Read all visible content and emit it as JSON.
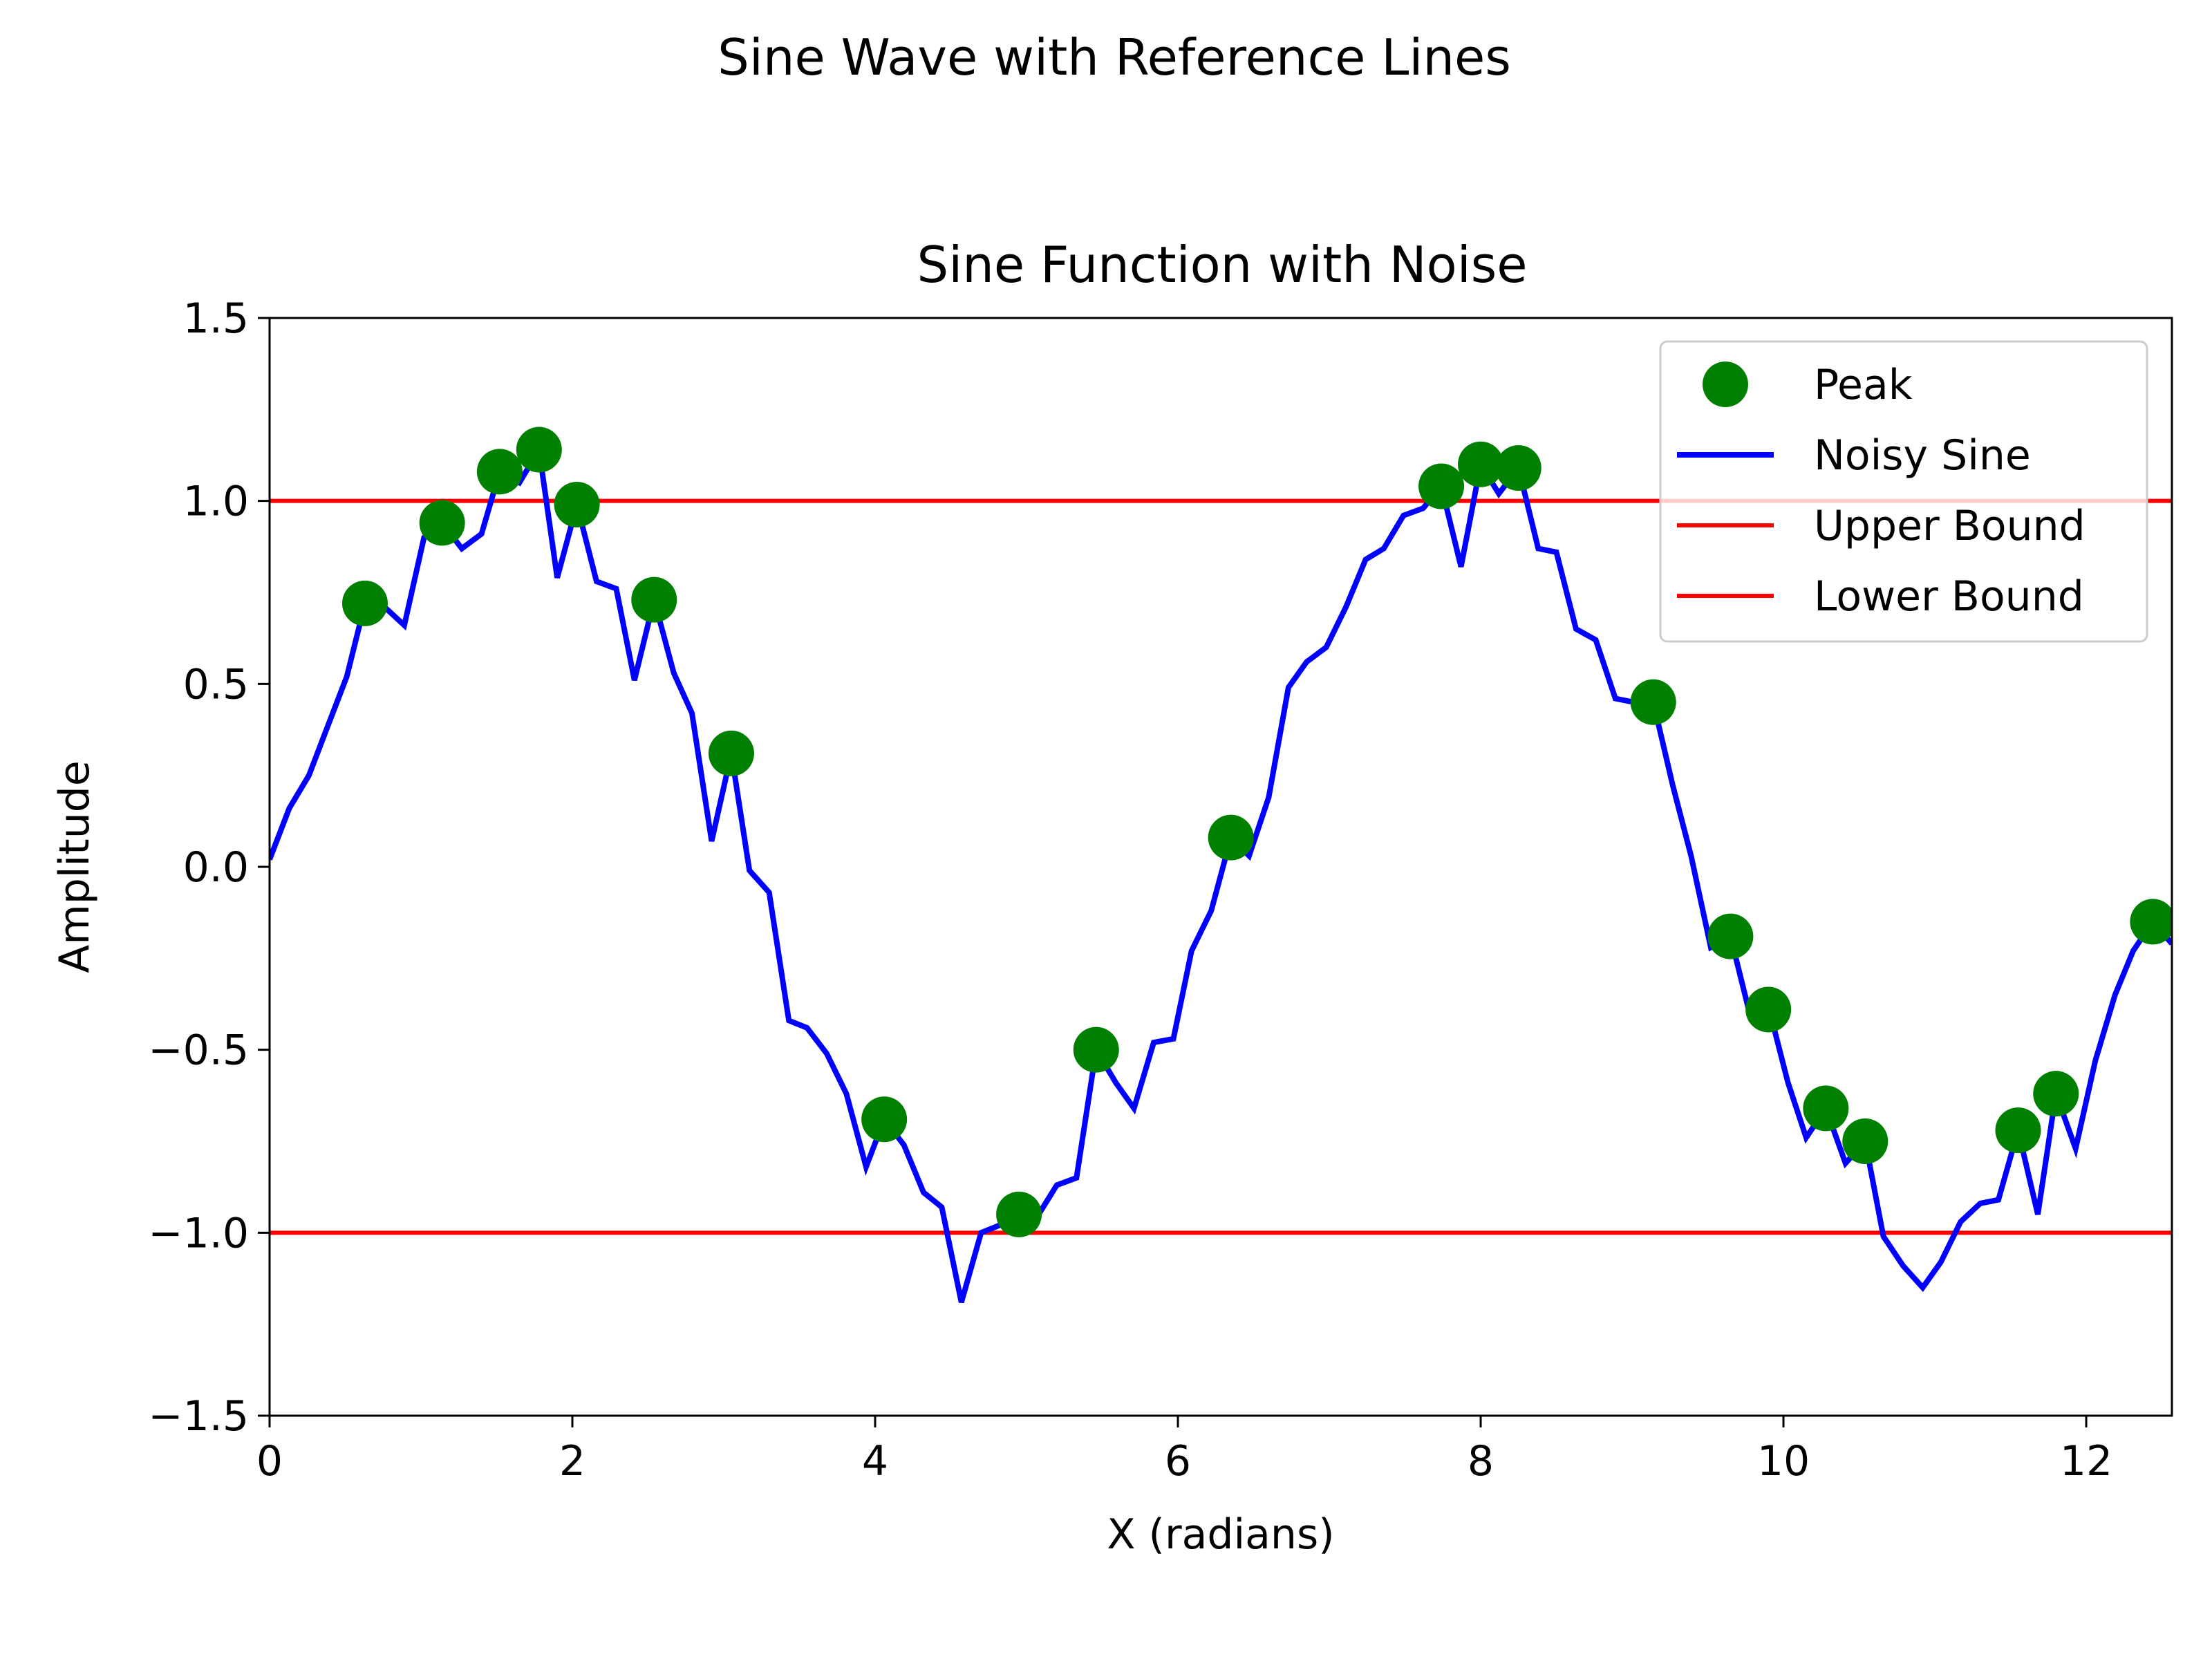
{
  "figure": {
    "suptitle": "Sine Wave with Reference Lines"
  },
  "chart_data": {
    "type": "line",
    "title": "Sine Function with Noise",
    "xlabel": "X (radians)",
    "ylabel": "Amplitude",
    "xlim": [
      0,
      12.566
    ],
    "ylim": [
      -1.5,
      1.5
    ],
    "xticks": [
      {
        "value": 0,
        "label": "0"
      },
      {
        "value": 2,
        "label": "2"
      },
      {
        "value": 4,
        "label": "4"
      },
      {
        "value": 6,
        "label": "6"
      },
      {
        "value": 8,
        "label": "8"
      },
      {
        "value": 10,
        "label": "10"
      },
      {
        "value": 12,
        "label": "12"
      }
    ],
    "yticks": [
      {
        "value": -1.5,
        "label": "−1.5"
      },
      {
        "value": -1.0,
        "label": "−1.0"
      },
      {
        "value": -0.5,
        "label": "−0.5"
      },
      {
        "value": 0.0,
        "label": "0.0"
      },
      {
        "value": 0.5,
        "label": "0.5"
      },
      {
        "value": 1.0,
        "label": "1.0"
      },
      {
        "value": 1.5,
        "label": "1.5"
      }
    ],
    "grid": false,
    "legend_position": "top-right",
    "series": [
      {
        "name": "Noisy Sine",
        "color": "#0000ff",
        "x": [
          0.0,
          0.13,
          0.26,
          0.38,
          0.51,
          0.63,
          0.76,
          0.89,
          1.02,
          1.14,
          1.27,
          1.4,
          1.52,
          1.65,
          1.78,
          1.9,
          2.03,
          2.16,
          2.29,
          2.41,
          2.54,
          2.67,
          2.79,
          2.92,
          3.05,
          3.17,
          3.3,
          3.43,
          3.55,
          3.68,
          3.81,
          3.94,
          4.06,
          4.19,
          4.32,
          4.44,
          4.57,
          4.7,
          4.82,
          4.95,
          5.08,
          5.2,
          5.33,
          5.46,
          5.59,
          5.71,
          5.84,
          5.97,
          6.09,
          6.22,
          6.35,
          6.47,
          6.6,
          6.73,
          6.85,
          6.98,
          7.11,
          7.24,
          7.36,
          7.49,
          7.62,
          7.74,
          7.87,
          8.0,
          8.12,
          8.25,
          8.38,
          8.5,
          8.63,
          8.76,
          8.89,
          9.01,
          9.14,
          9.27,
          9.39,
          9.52,
          9.65,
          9.77,
          9.9,
          10.03,
          10.15,
          10.28,
          10.41,
          10.54,
          10.66,
          10.79,
          10.92,
          11.04,
          11.17,
          11.3,
          11.42,
          11.55,
          11.68,
          11.8,
          11.93,
          12.06,
          12.19,
          12.31,
          12.44,
          12.566
        ],
        "y": [
          0.02,
          0.16,
          0.25,
          0.38,
          0.52,
          0.72,
          0.71,
          0.66,
          0.9,
          0.94,
          0.87,
          0.91,
          1.08,
          1.05,
          1.14,
          0.79,
          0.99,
          0.78,
          0.76,
          0.51,
          0.73,
          0.53,
          0.42,
          0.07,
          0.31,
          -0.01,
          -0.07,
          -0.42,
          -0.44,
          -0.51,
          -0.62,
          -0.82,
          -0.69,
          -0.76,
          -0.89,
          -0.93,
          -1.19,
          -1.0,
          -0.98,
          -0.94,
          -0.95,
          -0.87,
          -0.85,
          -0.5,
          -0.59,
          -0.66,
          -0.48,
          -0.47,
          -0.23,
          -0.12,
          0.08,
          0.03,
          0.19,
          0.49,
          0.56,
          0.6,
          0.71,
          0.84,
          0.87,
          0.96,
          0.98,
          1.04,
          0.82,
          1.1,
          1.02,
          1.09,
          0.87,
          0.86,
          0.65,
          0.62,
          0.46,
          0.45,
          0.45,
          0.22,
          0.03,
          -0.22,
          -0.19,
          -0.39,
          -0.38,
          -0.59,
          -0.74,
          -0.66,
          -0.81,
          -0.75,
          -1.01,
          -1.09,
          -1.15,
          -1.08,
          -0.97,
          -0.92,
          -0.91,
          -0.72,
          -0.95,
          -0.62,
          -0.77,
          -0.53,
          -0.35,
          -0.23,
          -0.15,
          -0.21
        ]
      }
    ],
    "scatter": {
      "name": "Peak",
      "color": "#008000",
      "points": [
        {
          "x": 0.63,
          "y": 0.72
        },
        {
          "x": 1.14,
          "y": 0.94
        },
        {
          "x": 1.52,
          "y": 1.08
        },
        {
          "x": 1.78,
          "y": 1.14
        },
        {
          "x": 2.03,
          "y": 0.99
        },
        {
          "x": 2.54,
          "y": 0.73
        },
        {
          "x": 3.05,
          "y": 0.31
        },
        {
          "x": 4.06,
          "y": -0.69
        },
        {
          "x": 4.95,
          "y": -0.95
        },
        {
          "x": 5.46,
          "y": -0.5
        },
        {
          "x": 6.35,
          "y": 0.08
        },
        {
          "x": 7.74,
          "y": 1.04
        },
        {
          "x": 8.0,
          "y": 1.1
        },
        {
          "x": 8.25,
          "y": 1.09
        },
        {
          "x": 9.14,
          "y": 0.45
        },
        {
          "x": 9.65,
          "y": -0.19
        },
        {
          "x": 9.9,
          "y": -0.39
        },
        {
          "x": 10.28,
          "y": -0.66
        },
        {
          "x": 10.54,
          "y": -0.75
        },
        {
          "x": 11.55,
          "y": -0.72
        },
        {
          "x": 11.8,
          "y": -0.62
        },
        {
          "x": 12.44,
          "y": -0.15
        }
      ]
    },
    "reference_lines": [
      {
        "name": "Upper Bound",
        "y": 1.0,
        "color": "#ff0000"
      },
      {
        "name": "Lower Bound",
        "y": -1.0,
        "color": "#ff0000"
      }
    ],
    "legend": [
      {
        "label": "Peak",
        "kind": "marker",
        "color": "#008000"
      },
      {
        "label": "Noisy Sine",
        "kind": "line",
        "color": "#0000ff"
      },
      {
        "label": "Upper Bound",
        "kind": "line",
        "color": "#ff0000"
      },
      {
        "label": "Lower Bound",
        "kind": "line",
        "color": "#ff0000"
      }
    ]
  }
}
